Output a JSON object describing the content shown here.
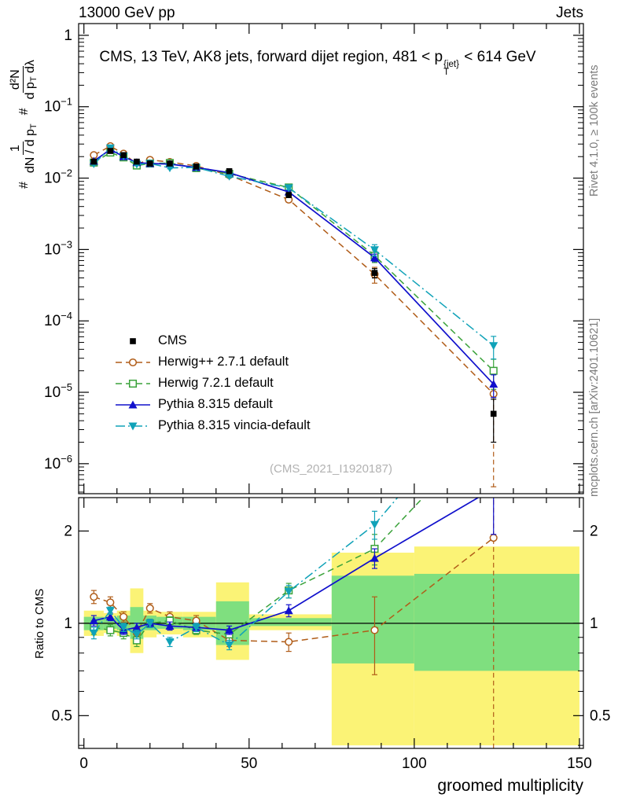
{
  "header": {
    "left": "13000 GeV pp",
    "right": "Jets"
  },
  "title": {
    "prefix": "CMS, 13 TeV, AK8 jets, forward dijet region, 481 < p",
    "sup": "{jet}",
    "sub": "T",
    "suffix": " < 614 GeV"
  },
  "side_labels": {
    "rivet": "Rivet 4.1.0, ≥ 100k events",
    "mcplots": "mcplots.cern.ch [arXiv:2401.10621]"
  },
  "watermark": "(CMS_2021_I1920187)",
  "axis_labels": {
    "x": "groomed multiplicity",
    "ratio_y": "Ratio to CMS",
    "main_y": {
      "hash1": "#",
      "f1_num": "1",
      "f1_den": "dN / d p",
      "f1_den_sub": "T",
      "hash2": "#",
      "f2_num": "d²N",
      "f2_den_a": "d p",
      "f2_den_sub": "T",
      "f2_den_b": " dλ"
    }
  },
  "chart_data": {
    "type": "line",
    "title": "CMS, 13 TeV, AK8 jets, forward dijet region, 481 < pT{jet} < 614 GeV",
    "xlabel": "groomed multiplicity",
    "ylabel_main": "1/(dN/dpT) d²N/(dpT dλ)",
    "ylabel_ratio": "Ratio to CMS",
    "legend_position": "middle-left",
    "grid": false,
    "x_range": [
      -1.6,
      151.2
    ],
    "x_major_ticks": [
      0,
      50,
      100,
      150
    ],
    "x_minor_step": 10,
    "main_panel": {
      "y_scale": "log",
      "y_top": 1.46,
      "y_bottom": 3.8e-07,
      "label_exponents": [
        0,
        -1,
        -2,
        -3,
        -4,
        -5,
        -6
      ]
    },
    "ratio_panel": {
      "y_scale": "log",
      "y_top": 2.57,
      "y_bottom": 0.391,
      "y_major_ticks": [
        0.5,
        1,
        2
      ],
      "y_minor_ticks": [
        0.4,
        0.6,
        0.7,
        0.8,
        0.9
      ],
      "band_colors": {
        "yellow": "#fbf376",
        "green": "#7fdf7f"
      },
      "bands": [
        {
          "x0": 0,
          "x1": 6,
          "yellow": [
            0.91,
            1.1
          ],
          "green": [
            0.95,
            1.05
          ]
        },
        {
          "x0": 6,
          "x1": 10,
          "yellow": [
            0.93,
            1.08
          ],
          "green": [
            0.96,
            1.04
          ]
        },
        {
          "x0": 10,
          "x1": 14,
          "yellow": [
            0.91,
            1.1
          ],
          "green": [
            0.95,
            1.06
          ]
        },
        {
          "x0": 14,
          "x1": 18,
          "yellow": [
            0.8,
            1.3
          ],
          "green": [
            0.89,
            1.13
          ]
        },
        {
          "x0": 18,
          "x1": 22,
          "yellow": [
            0.9,
            1.1
          ],
          "green": [
            0.95,
            1.06
          ]
        },
        {
          "x0": 22,
          "x1": 30,
          "yellow": [
            0.92,
            1.09
          ],
          "green": [
            0.96,
            1.05
          ]
        },
        {
          "x0": 30,
          "x1": 40,
          "yellow": [
            0.9,
            1.09
          ],
          "green": [
            0.95,
            1.05
          ]
        },
        {
          "x0": 40,
          "x1": 50,
          "yellow": [
            0.76,
            1.36
          ],
          "green": [
            0.85,
            1.18
          ]
        },
        {
          "x0": 50,
          "x1": 75,
          "yellow": [
            0.95,
            1.07
          ],
          "green": [
            0.98,
            1.04
          ]
        },
        {
          "x0": 75,
          "x1": 100,
          "yellow": [
            0.4,
            1.7
          ],
          "green": [
            0.74,
            1.43
          ]
        },
        {
          "x0": 100,
          "x1": 150,
          "yellow": [
            0.4,
            1.78
          ],
          "green": [
            0.7,
            1.45
          ]
        }
      ]
    },
    "series": [
      {
        "id": "cms",
        "name": "CMS",
        "color": "#000000",
        "marker": "sq_fill",
        "line": "none",
        "ratio_flat": true,
        "points": [
          [
            3,
            0.017,
            0.05
          ],
          [
            8,
            0.024,
            0.04
          ],
          [
            12,
            0.021,
            0.04
          ],
          [
            16,
            0.017,
            0.04
          ],
          [
            20,
            0.016,
            0.04
          ],
          [
            26,
            0.016,
            0.04
          ],
          [
            34,
            0.0145,
            0.04
          ],
          [
            44,
            0.0125,
            0.05
          ],
          [
            62,
            0.0058,
            0.08
          ],
          [
            88,
            0.00047,
            0.15
          ],
          [
            124,
            5e-06,
            0.6
          ]
        ],
        "ratio": []
      },
      {
        "id": "herwigpp",
        "name": "Herwig++ 2.7.1 default",
        "color": "#b05c18",
        "marker": "circle_open",
        "line": "dash",
        "ratio_flat": false,
        "points": [
          [
            3,
            0.021,
            0.05
          ],
          [
            8,
            0.028,
            0.04
          ],
          [
            12,
            0.022,
            0.04
          ],
          [
            16,
            0.0158,
            0.05
          ],
          [
            20,
            0.018,
            0.04
          ],
          [
            26,
            0.0168,
            0.04
          ],
          [
            34,
            0.0148,
            0.04
          ],
          [
            44,
            0.011,
            0.05
          ],
          [
            62,
            0.005,
            0.08
          ],
          [
            88,
            0.00045,
            0.25
          ],
          [
            124,
            9.5e-06,
            0.95
          ]
        ],
        "ratio": [
          [
            3,
            1.22,
            0.06
          ],
          [
            8,
            1.17,
            0.05
          ],
          [
            12,
            1.05,
            0.04
          ],
          [
            16,
            0.93,
            0.04
          ],
          [
            20,
            1.12,
            0.04
          ],
          [
            26,
            1.05,
            0.04
          ],
          [
            34,
            1.02,
            0.04
          ],
          [
            44,
            0.88,
            0.04
          ],
          [
            62,
            0.87,
            0.06
          ],
          [
            88,
            0.95,
            0.27
          ],
          [
            124,
            1.9,
            1.7
          ]
        ]
      },
      {
        "id": "herwig7",
        "name": "Herwig 7.2.1 default",
        "color": "#3aa23a",
        "marker": "sq_open",
        "line": "dash",
        "ratio_flat": false,
        "points": [
          [
            3,
            0.0165,
            0.05
          ],
          [
            8,
            0.0228,
            0.04
          ],
          [
            12,
            0.0195,
            0.04
          ],
          [
            16,
            0.015,
            0.04
          ],
          [
            20,
            0.016,
            0.04
          ],
          [
            26,
            0.0163,
            0.04
          ],
          [
            34,
            0.0138,
            0.04
          ],
          [
            44,
            0.0115,
            0.05
          ],
          [
            62,
            0.0074,
            0.08
          ],
          [
            88,
            0.00082,
            0.2
          ],
          [
            124,
            2e-05,
            0.45
          ]
        ],
        "ratio": [
          [
            3,
            0.97,
            0.05
          ],
          [
            8,
            0.95,
            0.04
          ],
          [
            12,
            0.93,
            0.04
          ],
          [
            16,
            0.88,
            0.04
          ],
          [
            20,
            1.0,
            0.03
          ],
          [
            26,
            1.02,
            0.03
          ],
          [
            34,
            0.95,
            0.03
          ],
          [
            44,
            0.92,
            0.04
          ],
          [
            62,
            1.28,
            0.07
          ],
          [
            88,
            1.75,
            0.2
          ],
          [
            124,
            4.5,
            1.5
          ]
        ]
      },
      {
        "id": "pythia",
        "name": "Pythia 8.315 default",
        "color": "#1010cc",
        "marker": "tri_up",
        "line": "solid",
        "ratio_flat": false,
        "points": [
          [
            3,
            0.0173,
            0.04
          ],
          [
            8,
            0.0252,
            0.03
          ],
          [
            12,
            0.02,
            0.03
          ],
          [
            16,
            0.0165,
            0.03
          ],
          [
            20,
            0.016,
            0.03
          ],
          [
            26,
            0.0157,
            0.03
          ],
          [
            34,
            0.0141,
            0.03
          ],
          [
            44,
            0.0119,
            0.04
          ],
          [
            62,
            0.0064,
            0.06
          ],
          [
            88,
            0.00077,
            0.12
          ],
          [
            124,
            1.3e-05,
            0.35
          ]
        ],
        "ratio": [
          [
            3,
            1.02,
            0.04
          ],
          [
            8,
            1.05,
            0.03
          ],
          [
            12,
            0.95,
            0.03
          ],
          [
            16,
            0.97,
            0.03
          ],
          [
            20,
            1.0,
            0.03
          ],
          [
            26,
            0.98,
            0.03
          ],
          [
            34,
            0.97,
            0.03
          ],
          [
            44,
            0.95,
            0.03
          ],
          [
            62,
            1.1,
            0.05
          ],
          [
            88,
            1.63,
            0.12
          ],
          [
            124,
            2.75,
            0.8
          ]
        ]
      },
      {
        "id": "vincia",
        "name": "Pythia 8.315 vincia-default",
        "color": "#10a2b8",
        "marker": "tri_down",
        "line": "dashdot",
        "ratio_flat": false,
        "points": [
          [
            3,
            0.0158,
            0.04
          ],
          [
            8,
            0.0264,
            0.03
          ],
          [
            12,
            0.0204,
            0.03
          ],
          [
            16,
            0.0156,
            0.03
          ],
          [
            20,
            0.016,
            0.03
          ],
          [
            26,
            0.0139,
            0.03
          ],
          [
            34,
            0.0141,
            0.03
          ],
          [
            44,
            0.0106,
            0.04
          ],
          [
            62,
            0.0073,
            0.06
          ],
          [
            88,
            0.00099,
            0.18
          ],
          [
            124,
            4.5e-05,
            0.35
          ]
        ],
        "ratio": [
          [
            3,
            0.93,
            0.04
          ],
          [
            8,
            1.1,
            0.03
          ],
          [
            12,
            0.97,
            0.03
          ],
          [
            16,
            0.92,
            0.03
          ],
          [
            20,
            1.0,
            0.03
          ],
          [
            26,
            0.87,
            0.03
          ],
          [
            34,
            0.97,
            0.03
          ],
          [
            44,
            0.85,
            0.03
          ],
          [
            62,
            1.27,
            0.06
          ],
          [
            88,
            2.1,
            0.22
          ],
          [
            124,
            6.0,
            2.0
          ]
        ]
      }
    ]
  }
}
